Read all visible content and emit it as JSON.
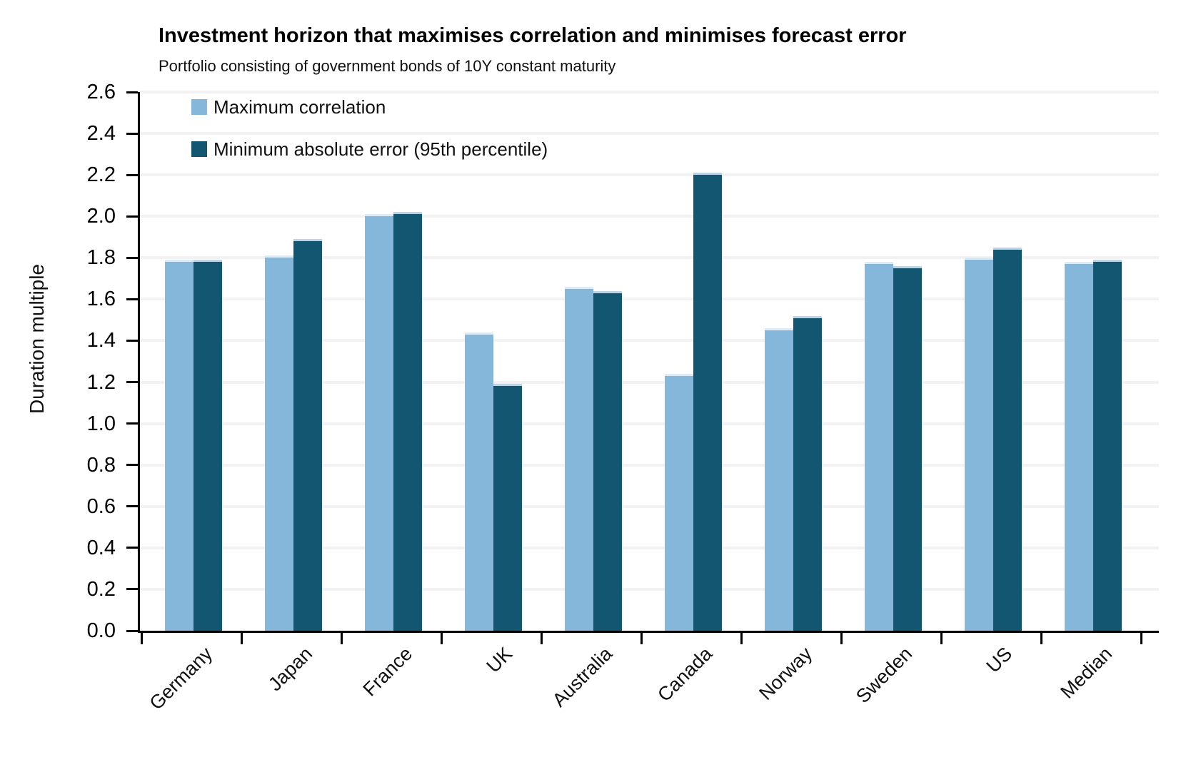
{
  "chart_data": {
    "type": "bar",
    "title": "Investment horizon that maximises correlation and minimises forecast error",
    "subtitle": "Portfolio consisting of government bonds of 10Y constant maturity",
    "ylabel": "Duration multiple",
    "ylim": [
      0.0,
      2.6
    ],
    "ytick_step": 0.2,
    "grid": "horizontal",
    "legend_position": "top-left-inside",
    "categories": [
      "Germany",
      "Japan",
      "France",
      "UK",
      "Australia",
      "Canada",
      "Norway",
      "Sweden",
      "US",
      "Median"
    ],
    "series": [
      {
        "name": "Maximum correlation",
        "color": "#85B7DB",
        "values": [
          1.79,
          1.81,
          2.01,
          1.44,
          1.66,
          1.24,
          1.46,
          1.78,
          1.8,
          1.78
        ]
      },
      {
        "name": "Minimum absolute error (95th percentile)",
        "color": "#135672",
        "values": [
          1.79,
          1.89,
          2.02,
          1.19,
          1.64,
          2.21,
          1.52,
          1.76,
          1.85,
          1.79
        ]
      }
    ]
  }
}
